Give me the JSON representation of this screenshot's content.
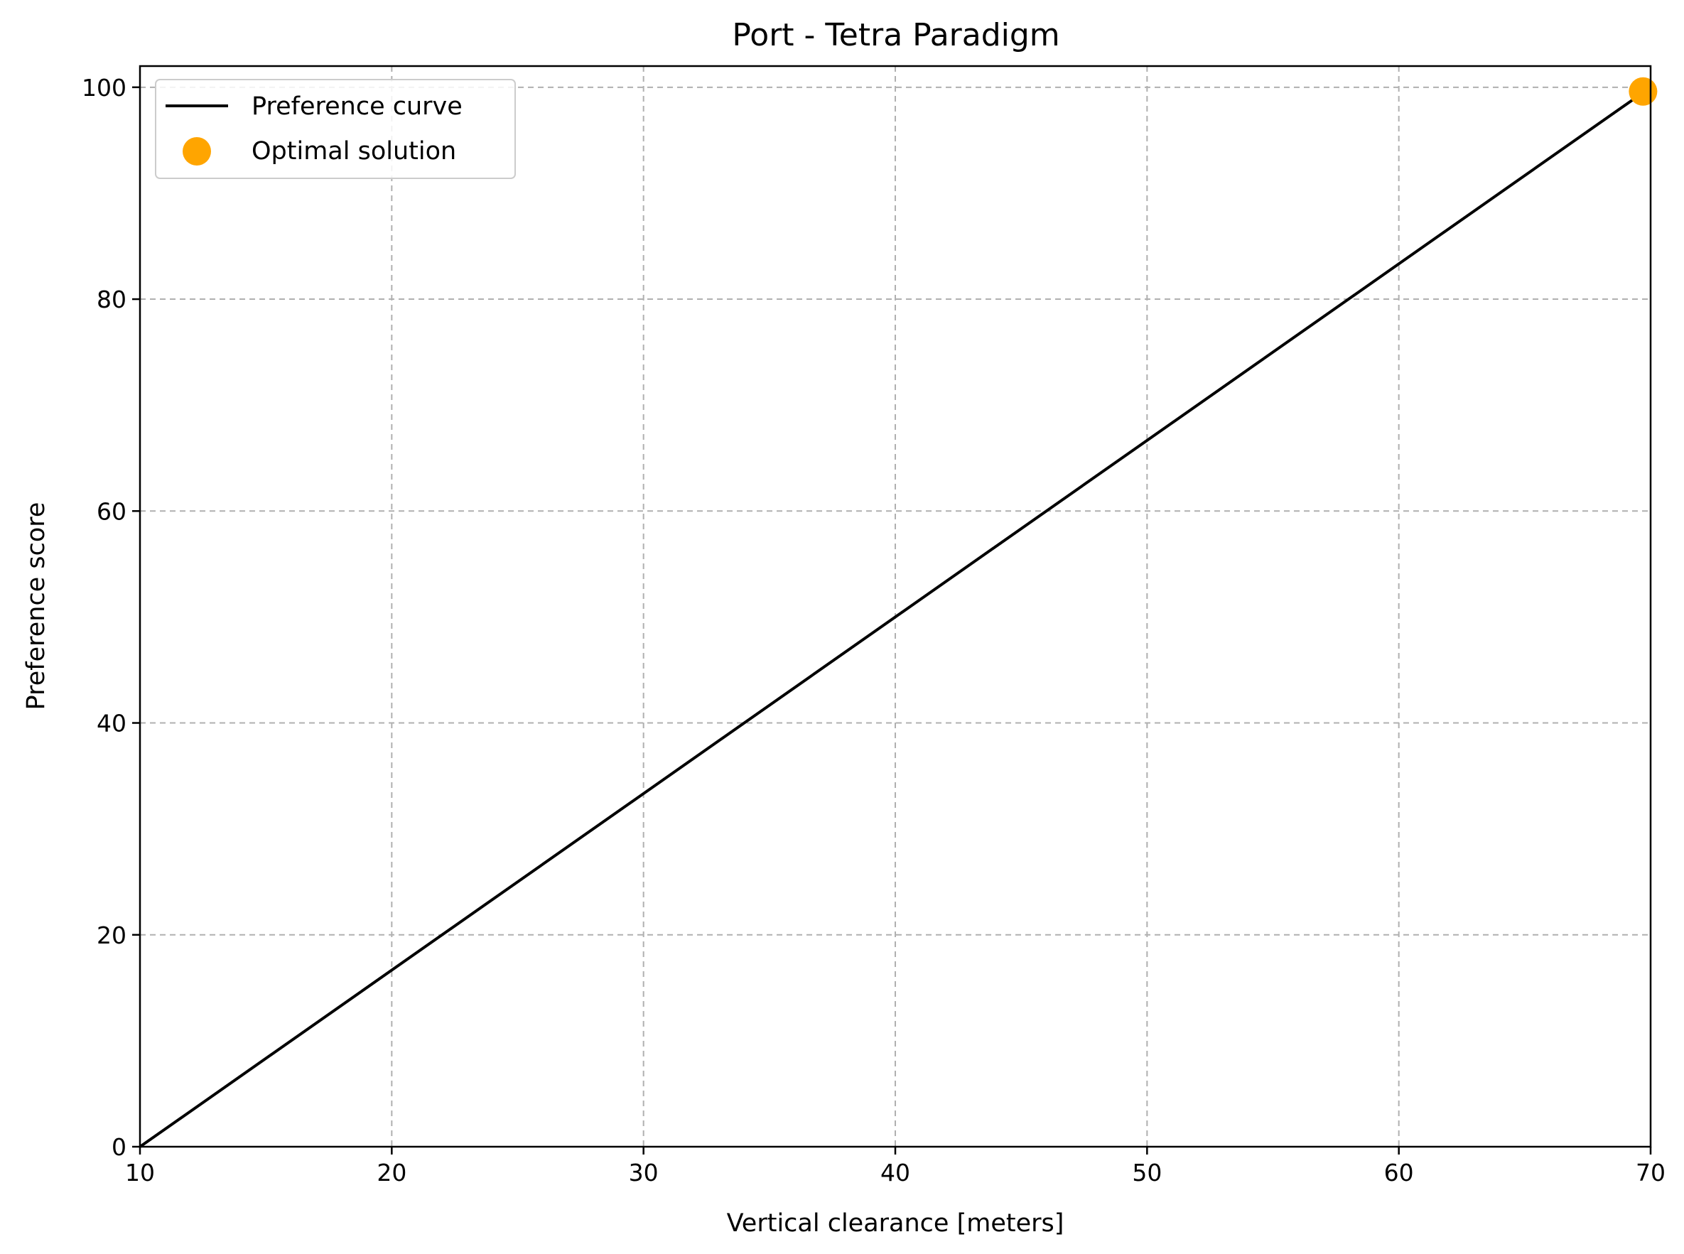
{
  "chart_data": {
    "type": "line",
    "title": "Port - Tetra Paradigm",
    "xlabel": "Vertical clearance [meters]",
    "ylabel": "Preference score",
    "xlim": [
      10,
      70
    ],
    "ylim": [
      0,
      102
    ],
    "xticks": [
      10,
      20,
      30,
      40,
      50,
      60,
      70
    ],
    "yticks": [
      0,
      20,
      40,
      60,
      80,
      100
    ],
    "grid": true,
    "legend_position": "top-left",
    "series": [
      {
        "name": "Preference curve",
        "kind": "line",
        "color": "#000000",
        "x": [
          10,
          70
        ],
        "y": [
          0,
          100
        ]
      },
      {
        "name": "Optimal solution",
        "kind": "scatter",
        "color": "#FFA500",
        "x": [
          69.7
        ],
        "y": [
          99.6
        ]
      }
    ]
  }
}
